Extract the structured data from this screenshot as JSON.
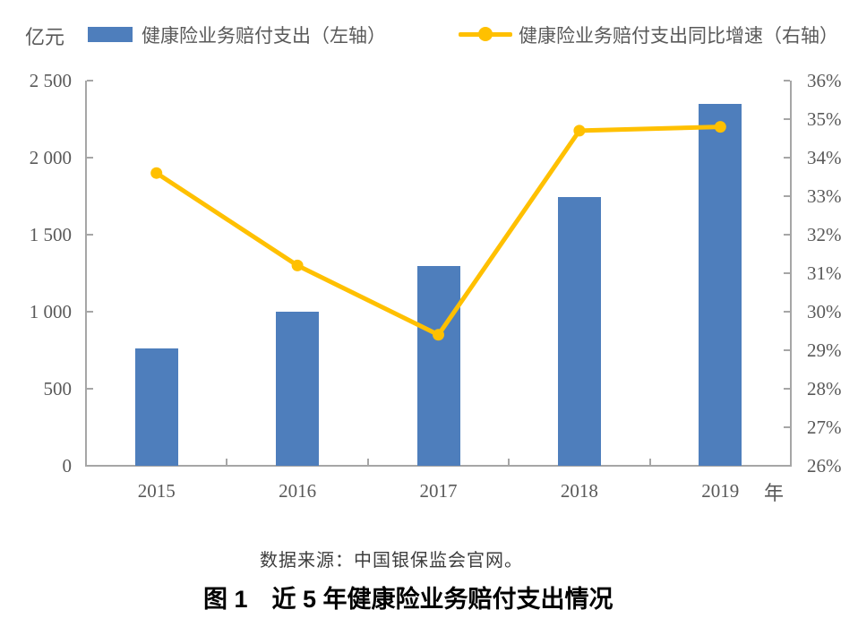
{
  "legend": {
    "unit_label": "亿元",
    "bar_label": "健康险业务赔付支出（左轴）",
    "line_label": "健康险业务赔付支出同比增速（右轴）"
  },
  "x_axis_unit": "年",
  "source_note": "数据来源：中国银保监会官网。",
  "caption": "图 1　近 5 年健康险业务赔付支出情况",
  "colors": {
    "bar": "#4E7EBC",
    "line": "#FFC000",
    "axis": "#A6A6A6",
    "tick_text": "#595959"
  },
  "chart_data": {
    "type": "bar+line",
    "title": "图 1　近 5 年健康险业务赔付支出情况",
    "categories": [
      "2015",
      "2016",
      "2017",
      "2018",
      "2019"
    ],
    "series": [
      {
        "name": "健康险业务赔付支出（左轴）",
        "type": "bar",
        "axis": "left",
        "unit": "亿元",
        "color": "#4E7EBC",
        "values": [
          763,
          1000,
          1295,
          1744,
          2351
        ]
      },
      {
        "name": "健康险业务赔付支出同比增速（右轴）",
        "type": "line",
        "axis": "right",
        "unit": "%",
        "color": "#FFC000",
        "values": [
          33.6,
          31.2,
          29.4,
          34.7,
          34.8
        ]
      }
    ],
    "left_axis": {
      "label": "亿元",
      "min": 0,
      "max": 2500,
      "step": 500,
      "tick_labels": [
        "0",
        "500",
        "1 000",
        "1 500",
        "2 000",
        "2 500"
      ]
    },
    "right_axis": {
      "min": 26,
      "max": 36,
      "step": 1,
      "tick_labels": [
        "26%",
        "27%",
        "28%",
        "29%",
        "30%",
        "31%",
        "32%",
        "33%",
        "34%",
        "35%",
        "36%"
      ]
    },
    "x_axis": {
      "label": "年"
    },
    "grid": false,
    "legend_position": "top"
  }
}
